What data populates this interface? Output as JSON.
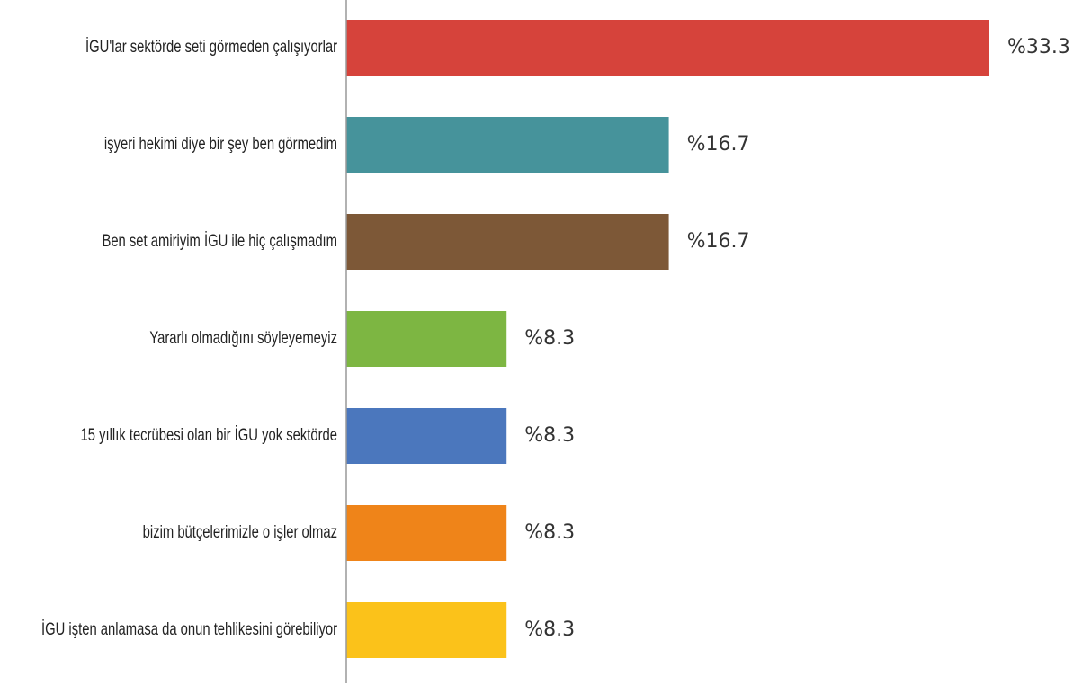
{
  "chart_data": {
    "type": "bar",
    "orientation": "horizontal",
    "title": "",
    "xlabel": "",
    "ylabel": "",
    "value_prefix": "%",
    "xlim": [
      0,
      33.3
    ],
    "grid": false,
    "categories": [
      "İGU'lar sektörde seti görmeden çalışıyorlar",
      "işyeri hekimi diye bir şey ben görmedim",
      "Ben set amiriyim İGU ile hiç çalışmadım",
      "Yararlı olmadığını söyleyemeyiz",
      "15 yıllık tecrübesi olan bir İGU yok sektörde",
      "bizim bütçelerimizle o işler olmaz",
      "İGU işten anlamasa da onun tehlikesini görebiliyor"
    ],
    "values": [
      33.3,
      16.7,
      16.7,
      8.3,
      8.3,
      8.3,
      8.3
    ],
    "value_labels": [
      "%33.3",
      "%16.7",
      "%16.7",
      "%8.3",
      "%8.3",
      "%8.3",
      "%8.3"
    ],
    "colors": [
      "#d6433b",
      "#46939b",
      "#7d5837",
      "#7db642",
      "#4b77bd",
      "#ef8419",
      "#fbc21a"
    ],
    "axis_color": "#999999"
  }
}
